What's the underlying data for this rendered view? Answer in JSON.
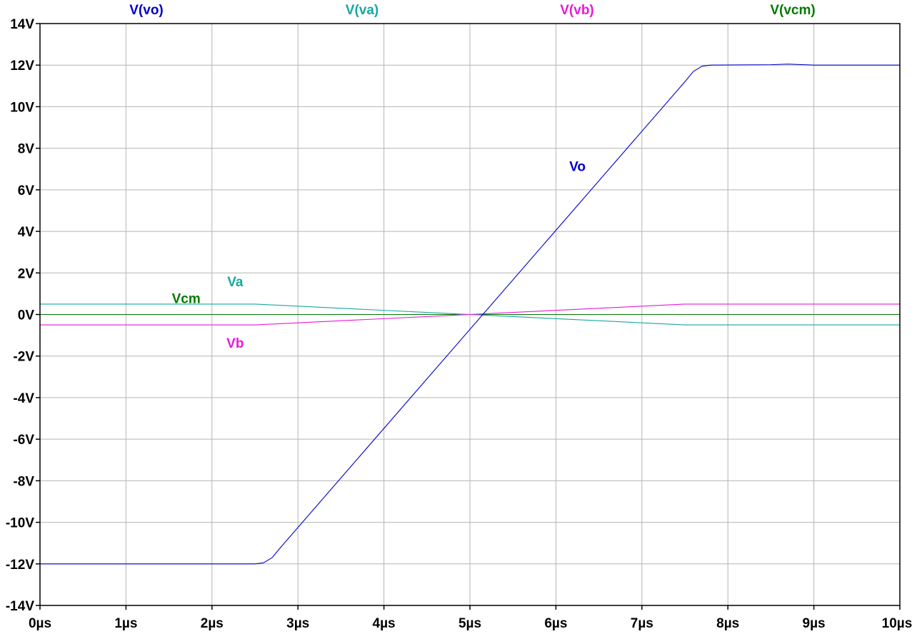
{
  "chart_data": {
    "type": "line",
    "x_unit": "µs",
    "y_unit": "V",
    "xlim": [
      0,
      10
    ],
    "ylim": [
      -14,
      14
    ],
    "grid": true,
    "legend_placement": "top",
    "xticks": [
      0,
      1,
      2,
      3,
      4,
      5,
      6,
      7,
      8,
      9,
      10
    ],
    "xtick_labels": [
      "0µs",
      "1µs",
      "2µs",
      "3µs",
      "4µs",
      "5µs",
      "6µs",
      "7µs",
      "8µs",
      "9µs",
      "10µs"
    ],
    "yticks": [
      14,
      12,
      10,
      8,
      6,
      4,
      2,
      0,
      -2,
      -4,
      -6,
      -8,
      -10,
      -12,
      -14
    ],
    "ytick_labels": [
      "14V",
      "12V",
      "10V",
      "8V",
      "6V",
      "4V",
      "2V",
      "0V",
      "-2V",
      "-4V",
      "-6V",
      "-8V",
      "-10V",
      "-12V",
      "-14V"
    ],
    "series": [
      {
        "name": "V(vo)",
        "color": "#0000cc",
        "points": [
          [
            0,
            -12
          ],
          [
            2.5,
            -12
          ],
          [
            2.6,
            -11.95
          ],
          [
            2.7,
            -11.7
          ],
          [
            2.8,
            -11.2
          ],
          [
            7.5,
            11.2
          ],
          [
            7.6,
            11.7
          ],
          [
            7.7,
            11.95
          ],
          [
            7.8,
            12
          ],
          [
            8.5,
            12.02
          ],
          [
            8.7,
            12.05
          ],
          [
            9.0,
            12.0
          ],
          [
            10,
            12.0
          ]
        ]
      },
      {
        "name": "V(va)",
        "color": "#16a89f",
        "points": [
          [
            0,
            0.5
          ],
          [
            2.5,
            0.5
          ],
          [
            7.5,
            -0.5
          ],
          [
            10,
            -0.5
          ]
        ]
      },
      {
        "name": "V(vb)",
        "color": "#e61ad9",
        "points": [
          [
            0,
            -0.5
          ],
          [
            2.5,
            -0.5
          ],
          [
            7.5,
            0.5
          ],
          [
            10,
            0.5
          ]
        ]
      },
      {
        "name": "V(vcm)",
        "color": "#007a00",
        "points": [
          [
            0,
            0
          ],
          [
            10,
            0
          ]
        ]
      }
    ],
    "annotations": [
      {
        "text": "Vo",
        "color": "#0000cc",
        "x": 6.25,
        "y": 6.9
      },
      {
        "text": "Va",
        "color": "#16a89f",
        "x": 2.27,
        "y": 1.35
      },
      {
        "text": "Vcm",
        "color": "#007a00",
        "x": 1.7,
        "y": 0.55
      },
      {
        "text": "Vb",
        "color": "#e61ad9",
        "x": 2.27,
        "y": -1.6
      }
    ]
  },
  "colors": {
    "grid": "#b4b4b4",
    "frame": "#000000",
    "background": "#ffffff"
  }
}
